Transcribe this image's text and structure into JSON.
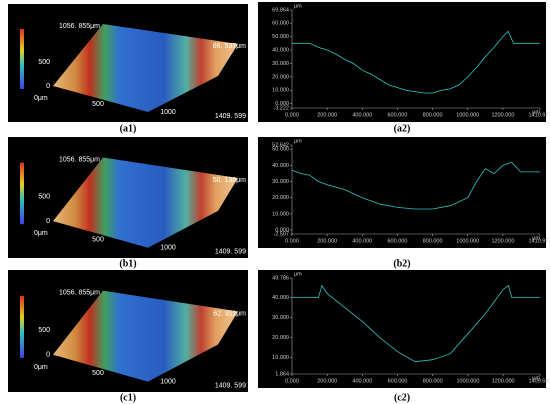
{
  "surfaces": [
    {
      "caption": "(a1)",
      "y_top": "1056. 855μm",
      "z_max": "66. 537μm",
      "y_mid": "500",
      "y_zero": "0",
      "x_zero": "0μm",
      "x_mid": "500",
      "x_1000": "1000",
      "x_end": "1409. 599"
    },
    {
      "caption": "(b1)",
      "y_top": "1056. 855μm",
      "z_max": "50. 136μm",
      "y_mid": "500",
      "y_zero": "0",
      "x_zero": "0μm",
      "x_mid": "500",
      "x_1000": "1000",
      "x_end": "1409. 599"
    },
    {
      "caption": "(c1)",
      "y_top": "1056. 855μm",
      "z_max": "62. 911μm",
      "y_mid": "500",
      "y_zero": "0",
      "x_zero": "0μm",
      "x_mid": "500",
      "x_1000": "1000",
      "x_end": "1409. 599"
    }
  ],
  "profiles": [
    {
      "caption": "(a2)",
      "type": "line",
      "unit": "μm",
      "color": "#2ec4c4",
      "x": [
        0,
        100,
        150,
        200,
        250,
        300,
        350,
        400,
        450,
        500,
        550,
        600,
        650,
        700,
        750,
        800,
        850,
        900,
        950,
        1000,
        1050,
        1100,
        1150,
        1200,
        1230,
        1260,
        1300,
        1410.977
      ],
      "values": [
        45,
        45,
        42,
        40,
        37,
        33,
        30,
        25,
        22,
        18,
        14,
        12,
        10,
        9,
        8,
        8,
        10,
        11,
        14,
        20,
        27,
        35,
        42,
        50,
        54,
        45,
        45,
        45
      ],
      "xlim": [
        0,
        1410.977
      ],
      "xticks": [
        {
          "value": 0,
          "label": "0.000"
        },
        {
          "value": 200,
          "label": "200.000"
        },
        {
          "value": 400,
          "label": "400.000"
        },
        {
          "value": 600,
          "label": "600.000"
        },
        {
          "value": 800,
          "label": "800.000"
        },
        {
          "value": 1000,
          "label": "1000.000"
        },
        {
          "value": 1200,
          "label": "1200.000"
        },
        1410.977
      ],
      "ylim": [
        -3.222,
        69.864
      ],
      "yticks": [
        69.864,
        {
          "value": 60,
          "label": "60.000"
        },
        {
          "value": 50,
          "label": "50.000"
        },
        {
          "value": 40,
          "label": "40.000"
        },
        {
          "value": 30,
          "label": "30.000"
        },
        {
          "value": 20,
          "label": "20.000"
        },
        {
          "value": 10,
          "label": "10.000"
        },
        {
          "value": 0,
          "label": "0.000"
        },
        -3.222
      ]
    },
    {
      "caption": "(b2)",
      "type": "line",
      "unit": "μm",
      "color": "#2ec4c4",
      "x": [
        0,
        50,
        100,
        150,
        200,
        300,
        400,
        500,
        600,
        700,
        800,
        900,
        1000,
        1050,
        1100,
        1150,
        1200,
        1250,
        1300,
        1410.977
      ],
      "values": [
        37,
        35,
        34,
        30,
        28,
        25,
        20,
        16,
        14,
        13,
        13,
        15,
        20,
        30,
        38,
        35,
        40,
        42,
        36,
        36
      ],
      "xlim": [
        0,
        1410.977
      ],
      "xticks": [
        {
          "value": 0,
          "label": "0.000"
        },
        {
          "value": 200,
          "label": "200.000"
        },
        {
          "value": 400,
          "label": "400.000"
        },
        {
          "value": 600,
          "label": "600.000"
        },
        {
          "value": 800,
          "label": "800.000"
        },
        {
          "value": 1000,
          "label": "1000.000"
        },
        {
          "value": 1200,
          "label": "1200.000"
        },
        1410.977
      ],
      "ylim": [
        -2.507,
        52.642
      ],
      "yticks": [
        52.642,
        {
          "value": 50,
          "label": "50.000"
        },
        {
          "value": 40,
          "label": "40.000"
        },
        {
          "value": 30,
          "label": "30.000"
        },
        {
          "value": 20,
          "label": "20.000"
        },
        {
          "value": 10,
          "label": "10.000"
        },
        {
          "value": 0,
          "label": "0.000"
        },
        -2.507
      ]
    },
    {
      "caption": "(c2)",
      "type": "line",
      "unit": "μm",
      "color": "#2ec4c4",
      "x": [
        0,
        100,
        150,
        170,
        200,
        300,
        400,
        500,
        600,
        700,
        800,
        900,
        1000,
        1100,
        1150,
        1200,
        1230,
        1250,
        1409.599
      ],
      "values": [
        40,
        40,
        40,
        46,
        42,
        35,
        28,
        20,
        13,
        8,
        9,
        12,
        22,
        32,
        38,
        44,
        46,
        40,
        40
      ],
      "xlim": [
        0,
        1409.599
      ],
      "xticks": [
        {
          "value": 0,
          "label": "0.000"
        },
        {
          "value": 200,
          "label": "200.000"
        },
        {
          "value": 400,
          "label": "400.000"
        },
        {
          "value": 600,
          "label": "600.000"
        },
        {
          "value": 800,
          "label": "800.000"
        },
        {
          "value": 1000,
          "label": "1000.000"
        },
        {
          "value": 1200,
          "label": "1200.000"
        },
        1409.599
      ],
      "ylim": [
        1.864,
        49.786
      ],
      "yticks": [
        49.786,
        {
          "value": 40,
          "label": "40.000"
        },
        {
          "value": 30,
          "label": "30.000"
        },
        {
          "value": 20,
          "label": "20.000"
        },
        {
          "value": 10,
          "label": "10.000"
        },
        1.864
      ]
    }
  ]
}
